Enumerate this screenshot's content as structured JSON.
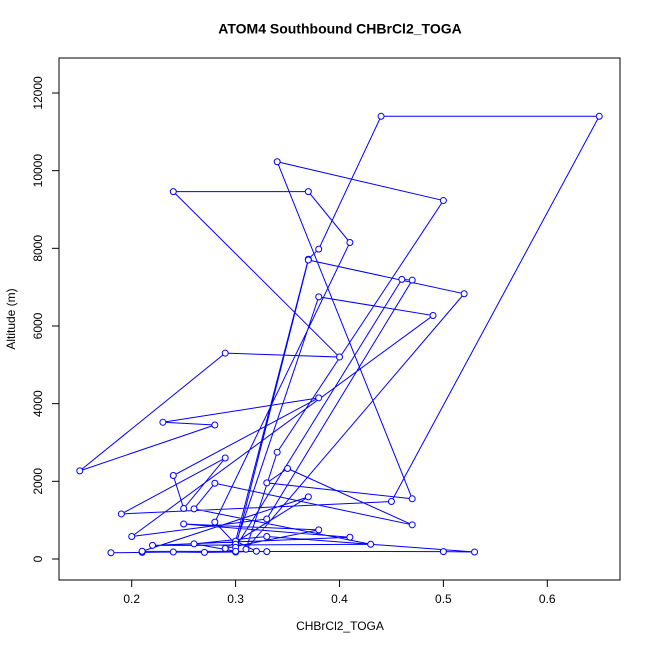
{
  "chart_data": {
    "type": "line",
    "title": "ATOM4 Southbound CHBrCl2_TOGA",
    "x_label": "CHBrCl2_TOGA",
    "y_label": "Altitude (m)",
    "color": "#0000ff",
    "markers": true,
    "x": [
      0.18,
      0.21,
      0.24,
      0.27,
      0.3,
      0.32,
      0.3,
      0.37,
      0.38,
      0.44,
      0.65,
      0.45,
      0.19,
      0.29,
      0.25,
      0.24,
      0.38,
      0.23,
      0.28,
      0.15,
      0.29,
      0.4,
      0.24,
      0.37,
      0.41,
      0.28,
      0.3,
      0.38,
      0.49,
      0.2,
      0.33,
      0.47,
      0.46,
      0.3,
      0.37,
      0.52,
      0.31,
      0.34,
      0.5,
      0.34,
      0.47,
      0.33,
      0.35,
      0.47,
      0.28,
      0.26,
      0.43,
      0.22,
      0.41,
      0.25,
      0.38,
      0.29,
      0.37,
      0.21,
      0.5,
      0.53,
      0.33,
      0.26,
      0.3,
      0.33
    ],
    "values": [
      160,
      170,
      180,
      170,
      180,
      200,
      460,
      7720,
      7980,
      11400,
      11400,
      1480,
      1160,
      2600,
      1300,
      2150,
      4150,
      3520,
      3450,
      2270,
      5300,
      5200,
      9460,
      9460,
      8150,
      950,
      380,
      6750,
      6270,
      580,
      1030,
      7180,
      7200,
      300,
      7700,
      6830,
      250,
      2750,
      9230,
      10230,
      1550,
      1960,
      2330,
      880,
      1950,
      1290,
      380,
      350,
      560,
      900,
      750,
      270,
      1600,
      200,
      190,
      180,
      580,
      390,
      200,
      190
    ],
    "xlim": [
      0.13,
      0.67
    ],
    "xticks": [
      0.2,
      0.3,
      0.4,
      0.5,
      0.6
    ],
    "ylim": [
      -541,
      12901
    ],
    "yticks": [
      0,
      2000,
      4000,
      6000,
      8000,
      10000,
      12000
    ]
  }
}
